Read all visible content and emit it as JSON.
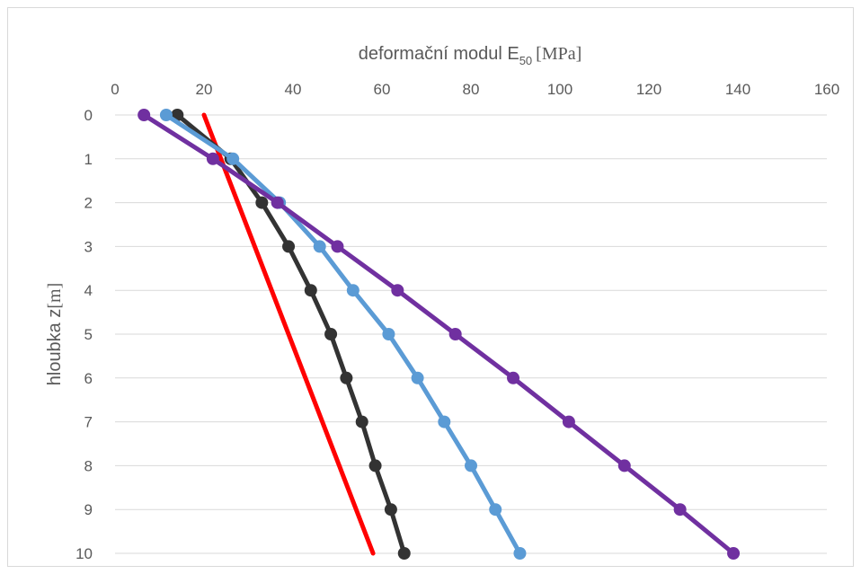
{
  "chart_data": {
    "type": "line",
    "xlabel_main": "deformační modul E",
    "xlabel_sub": "50",
    "xlabel_unit": "[MPa]",
    "ylabel_main": "hloubka z",
    "ylabel_unit": "[m]",
    "xlim": [
      0,
      160
    ],
    "ylim": [
      0,
      10
    ],
    "y_inverted": true,
    "x_axis_position": "top",
    "grid": "horizontal",
    "x_ticks": [
      0,
      20,
      40,
      60,
      80,
      100,
      120,
      140,
      160
    ],
    "y_ticks": [
      0,
      1,
      2,
      3,
      4,
      5,
      6,
      7,
      8,
      9,
      10
    ],
    "series": [
      {
        "color": "#ff0000",
        "markers": false,
        "points": [
          [
            20,
            0
          ],
          [
            58,
            10
          ]
        ]
      },
      {
        "color": "#333333",
        "markers": true,
        "points": [
          [
            14,
            0
          ],
          [
            26,
            1
          ],
          [
            33,
            2
          ],
          [
            39,
            3
          ],
          [
            44,
            4
          ],
          [
            48.5,
            5
          ],
          [
            52,
            6
          ],
          [
            55.5,
            7
          ],
          [
            58.5,
            8
          ],
          [
            62,
            9
          ],
          [
            65,
            10
          ]
        ]
      },
      {
        "color": "#5b9bd5",
        "markers": true,
        "points": [
          [
            11.5,
            0
          ],
          [
            26.5,
            1
          ],
          [
            37,
            2
          ],
          [
            46,
            3
          ],
          [
            53.5,
            4
          ],
          [
            61.5,
            5
          ],
          [
            68,
            6
          ],
          [
            74,
            7
          ],
          [
            80,
            8
          ],
          [
            85.5,
            9
          ],
          [
            91,
            10
          ]
        ]
      },
      {
        "color": "#7030a0",
        "markers": true,
        "points": [
          [
            6.5,
            0
          ],
          [
            22,
            1
          ],
          [
            36.5,
            2
          ],
          [
            50,
            3
          ],
          [
            63.5,
            4
          ],
          [
            76.5,
            5
          ],
          [
            89.5,
            6
          ],
          [
            102,
            7
          ],
          [
            114.5,
            8
          ],
          [
            127,
            9
          ],
          [
            139,
            10
          ]
        ]
      }
    ]
  }
}
